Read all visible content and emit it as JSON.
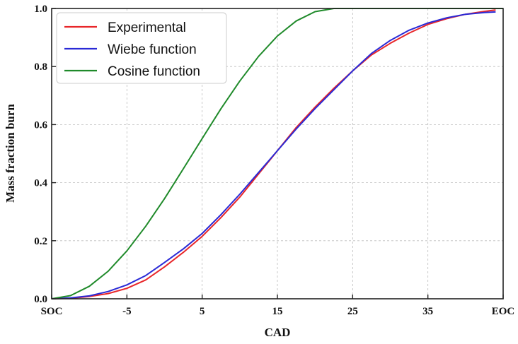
{
  "chart_data": {
    "type": "line",
    "title": "",
    "xlabel": "CAD",
    "ylabel": "Mass fraction burn",
    "xlim": [
      -15,
      45
    ],
    "ylim": [
      0,
      1.0
    ],
    "grid": true,
    "legend_position": "top-left",
    "x_ticks": [
      {
        "value": -15,
        "label": "SOC"
      },
      {
        "value": -5,
        "label": "-5"
      },
      {
        "value": 5,
        "label": "5"
      },
      {
        "value": 15,
        "label": "15"
      },
      {
        "value": 25,
        "label": "25"
      },
      {
        "value": 35,
        "label": "35"
      },
      {
        "value": 45,
        "label": "EOC"
      }
    ],
    "y_ticks": [
      {
        "value": 0.0,
        "label": "0.0"
      },
      {
        "value": 0.2,
        "label": "0.2"
      },
      {
        "value": 0.4,
        "label": "0.4"
      },
      {
        "value": 0.6,
        "label": "0.6"
      },
      {
        "value": 0.8,
        "label": "0.8"
      },
      {
        "value": 1.0,
        "label": "1.0"
      }
    ],
    "series": [
      {
        "name": "Experimental",
        "color": "#e8262a",
        "x": [
          -15,
          -12.5,
          -10,
          -7.5,
          -5,
          -2.5,
          0,
          2.5,
          5,
          7.5,
          10,
          12.5,
          15,
          17.5,
          20,
          22.5,
          25,
          27.5,
          30,
          32.5,
          35,
          37.5,
          40,
          42.5,
          44
        ],
        "y": [
          0.0,
          0.002,
          0.008,
          0.018,
          0.036,
          0.065,
          0.11,
          0.16,
          0.215,
          0.28,
          0.35,
          0.43,
          0.51,
          0.59,
          0.66,
          0.725,
          0.785,
          0.84,
          0.88,
          0.915,
          0.945,
          0.965,
          0.98,
          0.99,
          0.995
        ]
      },
      {
        "name": "Wiebe function",
        "color": "#2a2ad6",
        "x": [
          -15,
          -12.5,
          -10,
          -7.5,
          -5,
          -2.5,
          0,
          2.5,
          5,
          7.5,
          10,
          12.5,
          15,
          17.5,
          20,
          22.5,
          25,
          27.5,
          30,
          32.5,
          35,
          37.5,
          40,
          42.5,
          44
        ],
        "y": [
          0.0,
          0.003,
          0.01,
          0.025,
          0.048,
          0.08,
          0.125,
          0.172,
          0.225,
          0.29,
          0.36,
          0.435,
          0.51,
          0.585,
          0.655,
          0.72,
          0.785,
          0.845,
          0.89,
          0.925,
          0.95,
          0.968,
          0.98,
          0.986,
          0.988
        ]
      },
      {
        "name": "Cosine function",
        "color": "#1f8a2a",
        "x": [
          -15,
          -12.5,
          -10,
          -7.5,
          -5,
          -2.5,
          0,
          2.5,
          5,
          7.5,
          10,
          12.5,
          15,
          17.5,
          20,
          22.5,
          25,
          27.5,
          30,
          32.5,
          35,
          37.5,
          40,
          42.5,
          45
        ],
        "y": [
          0.0,
          0.011,
          0.043,
          0.095,
          0.165,
          0.25,
          0.345,
          0.448,
          0.552,
          0.655,
          0.75,
          0.835,
          0.905,
          0.957,
          0.989,
          1.0,
          1.0,
          1.0,
          1.0,
          1.0,
          1.0,
          1.0,
          1.0,
          1.0,
          1.0
        ],
        "x_mapping_note_excluded": null
      }
    ]
  }
}
